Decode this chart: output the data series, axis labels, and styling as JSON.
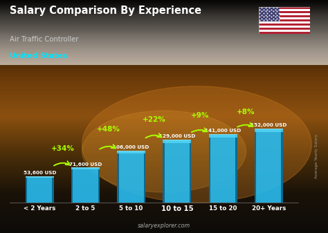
{
  "title": "Salary Comparison By Experience",
  "subtitle": "Air Traffic Controller",
  "country": "United States",
  "categories": [
    "< 2 Years",
    "2 to 5",
    "5 to 10",
    "10 to 15",
    "15 to 20",
    "20+ Years"
  ],
  "values": [
    53600,
    71600,
    106000,
    129000,
    141000,
    152000
  ],
  "labels": [
    "53,600 USD",
    "71,600 USD",
    "106,000 USD",
    "129,000 USD",
    "141,000 USD",
    "152,000 USD"
  ],
  "pct_changes": [
    "+34%",
    "+48%",
    "+22%",
    "+9%",
    "+8%"
  ],
  "bar_color_top": "#29c8f0",
  "bar_color_bot": "#1a8ab5",
  "bg_top": "#1a1208",
  "bg_mid": "#8b5e1a",
  "bg_bot": "#3a2a10",
  "title_color": "#ffffff",
  "subtitle_color": "#cccccc",
  "country_color": "#00e5ff",
  "label_color": "#ffffff",
  "pct_color": "#aaff00",
  "arrow_color": "#aaff00",
  "xticklabel_color": "#ffffff",
  "bold_category": "10 to 15",
  "footer": "salaryexplorer.com",
  "footer_color": "#aaaaaa",
  "watermark": "Average Yearly Salary"
}
